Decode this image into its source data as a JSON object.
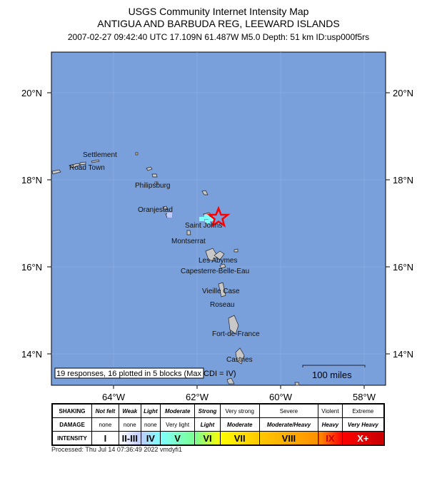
{
  "title": {
    "line1": "USGS Community Internet Intensity Map",
    "line2": "ANTIGUA AND BARBUDA REG, LEEWARD ISLANDS",
    "line3": "2007-02-27 09:42:40 UTC 17.109N 61.487W M5.0 Depth: 51 km ID:usp000f5rs"
  },
  "map": {
    "ocean_color": "#7aa0dc",
    "lat_labels": [
      "20°N",
      "18°N",
      "16°N",
      "14°N"
    ],
    "lon_labels": [
      "64°W",
      "62°W",
      "60°W",
      "58°W"
    ],
    "places": [
      "Settlement",
      "Road Town",
      "Philipsburg",
      "Oranjestad",
      "Saint Johns",
      "Montserrat",
      "Les Abymes",
      "Capesterre-Belle-Eau",
      "Vieille Case",
      "Roseau",
      "Fort-de-France",
      "Castries"
    ],
    "summary": "19 responses, 16 plotted in 5 blocks (Max CDI = IV)",
    "scale_label": "100 miles",
    "epicenter": {
      "lat": 17.109,
      "lon": -61.487
    }
  },
  "legend": {
    "row_headers": [
      "SHAKING",
      "DAMAGE",
      "INTENSITY"
    ],
    "shaking": [
      "Not felt",
      "Weak",
      "Light",
      "Moderate",
      "Strong",
      "Very strong",
      "Severe",
      "Violent",
      "Extreme"
    ],
    "damage": [
      "none",
      "none",
      "none",
      "Very light",
      "Light",
      "Moderate",
      "Moderate/Heavy",
      "Heavy",
      "Very Heavy"
    ],
    "intensity": [
      "I",
      "II-III",
      "IV",
      "V",
      "VI",
      "VII",
      "VIII",
      "IX",
      "X+"
    ],
    "colors": [
      "#ffffff",
      "#bfccff",
      "#80ffff",
      "#7aff93",
      "#ffff00",
      "#ffc800",
      "#ff9100",
      "#ff0000",
      "#c80000"
    ]
  },
  "processed": "Processed: Thu Jul 14 07:36:49 2022 vmdyfi1"
}
